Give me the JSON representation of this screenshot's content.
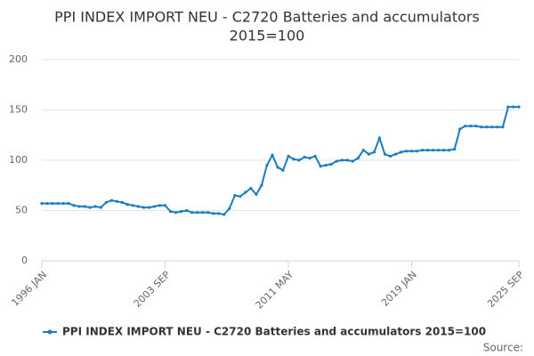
{
  "chart_data": {
    "type": "line",
    "title": [
      "PPI INDEX IMPORT NEU - C2720 Batteries and accumulators",
      "2015=100"
    ],
    "categories": [
      "1996 JAN",
      null,
      null,
      null,
      null,
      null,
      null,
      null,
      null,
      null,
      null,
      null,
      null,
      null,
      null,
      null,
      null,
      null,
      null,
      null,
      null,
      null,
      null,
      "2003 SEP",
      null,
      null,
      null,
      null,
      null,
      null,
      null,
      null,
      null,
      null,
      null,
      null,
      null,
      null,
      null,
      null,
      null,
      null,
      null,
      null,
      null,
      null,
      "2011 MAY",
      null,
      null,
      null,
      null,
      null,
      null,
      null,
      null,
      null,
      null,
      null,
      null,
      null,
      null,
      null,
      null,
      null,
      null,
      null,
      null,
      null,
      null,
      "2019 JAN",
      null,
      null,
      null,
      null,
      null,
      null,
      null,
      null,
      null,
      null,
      null,
      null,
      null,
      null,
      null,
      null,
      null,
      null,
      null,
      "2025 SEP"
    ],
    "series": [
      {
        "name": "PPI INDEX IMPORT NEU - C2720 Batteries and accumulators 2015=100",
        "color": "#1a7dc0",
        "values": [
          57,
          57,
          57,
          57,
          57,
          57,
          55,
          54,
          54,
          53,
          54,
          53,
          58,
          60,
          59,
          58,
          56,
          55,
          54,
          53,
          53,
          54,
          55,
          55,
          49,
          48,
          49,
          50,
          48,
          48,
          48,
          48,
          47,
          47,
          46,
          52,
          65,
          64,
          68,
          72,
          66,
          75,
          95,
          105,
          93,
          90,
          104,
          101,
          100,
          103,
          102,
          104,
          94,
          95,
          96,
          99,
          100,
          100,
          99,
          102,
          110,
          106,
          108,
          122,
          106,
          104,
          106,
          108,
          109,
          109,
          109,
          110,
          110,
          110,
          110,
          110,
          110,
          111,
          131,
          134,
          134,
          134,
          133,
          133,
          133,
          133,
          133,
          153,
          153,
          153
        ]
      }
    ],
    "ylim": [
      0,
      200
    ],
    "yticks": [
      0,
      50,
      100,
      150,
      200
    ],
    "grid": true,
    "legend": "bottom",
    "source": "Source:"
  }
}
